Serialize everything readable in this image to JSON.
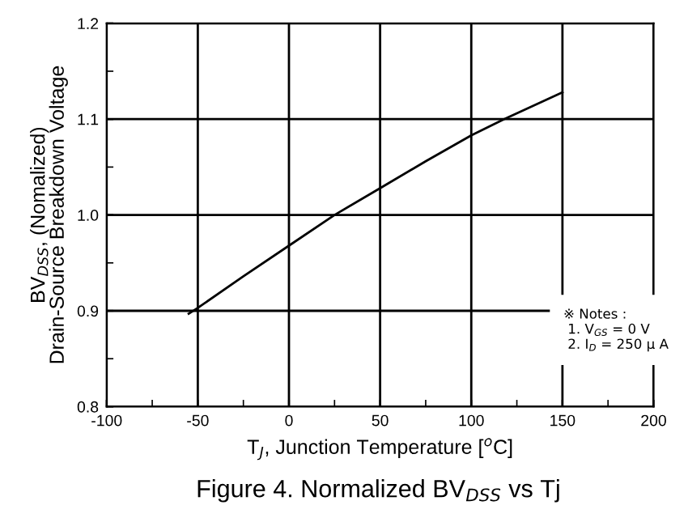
{
  "chart_data": {
    "type": "line",
    "xlabel": "T$_{J}$, Junction Temperature [$^{o}$C]",
    "ylabel": "BV$_{DSS}$, (Nomalized)\nDrain-Source Breakdown Voltage",
    "x": [
      -55,
      -50,
      -25,
      0,
      25,
      50,
      75,
      100,
      118,
      150
    ],
    "series": [
      {
        "color": "#000000",
        "values": [
          0.897,
          0.903,
          0.936,
          0.968,
          1.0,
          1.028,
          1.056,
          1.083,
          1.1,
          1.128
        ]
      }
    ],
    "xlim": [
      -100,
      200
    ],
    "xticks": [
      -100,
      -50,
      0,
      50,
      100,
      150,
      200
    ],
    "ylim": [
      0.8,
      1.2
    ],
    "yticks": [
      0.8,
      0.9,
      {
        "value": 1.0,
        "label": "1.0"
      },
      1.1,
      1.2
    ],
    "grid": true,
    "marker": "none",
    "line_style": "solid",
    "annotations": [
      "※ Notes :\n 1. V$_{GS}$ = 0 V\n 2. I$_{D}$ = 250 μ A",
      "Figure 4. Normalized BV$_{DSS}$ vs Tj"
    ]
  }
}
